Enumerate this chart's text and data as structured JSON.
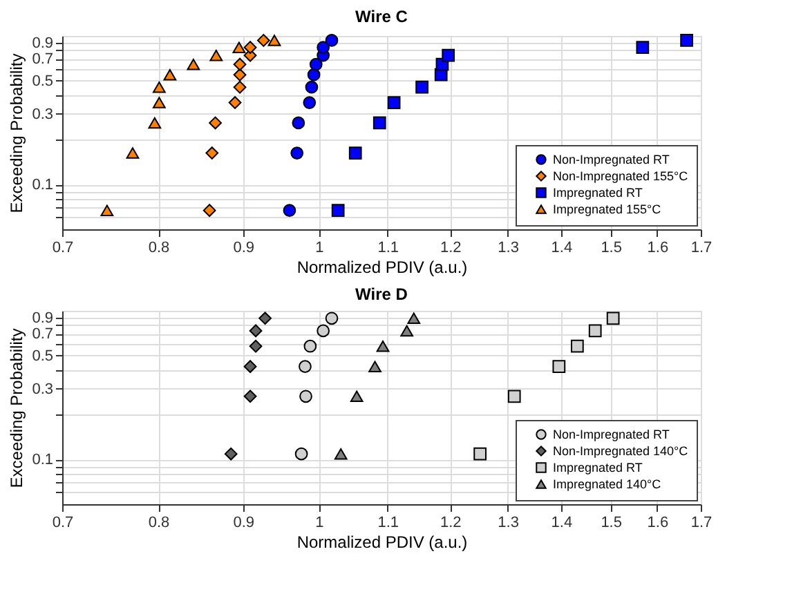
{
  "chart_data": [
    {
      "type": "scatter",
      "title": "Wire C",
      "xlabel": "Normalized PDIV (a.u.)",
      "ylabel": "Exceeding Probability",
      "log": "xy",
      "grid": true,
      "legend": "bottom right",
      "xlim": [
        0.7,
        1.7
      ],
      "xticks": [
        0.7,
        0.8,
        0.9,
        1,
        1.1,
        1.2,
        1.3,
        1.4,
        1.5,
        1.6,
        1.7
      ],
      "ylim": [
        0.05,
        1
      ],
      "yticks": [
        {
          "value": 0.06,
          "label": null
        },
        {
          "value": 0.07,
          "label": null
        },
        {
          "value": 0.08,
          "label": null
        },
        {
          "value": 0.09,
          "label": null
        },
        0.1,
        {
          "value": 0.2,
          "label": null
        },
        0.3,
        {
          "value": 0.4,
          "label": null
        },
        0.5,
        {
          "value": 0.6,
          "label": null
        },
        0.7,
        {
          "value": 0.8,
          "label": null
        },
        0.9
      ],
      "series": [
        {
          "name": "Non-Impregnated RT",
          "color": "#0000ff",
          "marker": "circle",
          "x": [
            0.96,
            0.97,
            0.972,
            0.987,
            0.99,
            0.993,
            0.996,
            1.006,
            1.006,
            1.018
          ],
          "values": [
            0.067,
            0.163,
            0.26,
            0.356,
            0.452,
            0.548,
            0.644,
            0.74,
            0.837,
            0.933
          ]
        },
        {
          "name": "Non-Impregnated 155°C",
          "color": "#ff8000",
          "marker": "diamond",
          "x": [
            0.859,
            0.862,
            0.866,
            0.89,
            0.896,
            0.896,
            0.896,
            0.909,
            0.909,
            0.926
          ],
          "values": [
            0.067,
            0.163,
            0.26,
            0.356,
            0.452,
            0.548,
            0.644,
            0.74,
            0.837,
            0.933
          ]
        },
        {
          "name": "Impregnated RT",
          "color": "#0000ff",
          "marker": "square",
          "x": [
            1.027,
            1.052,
            1.088,
            1.11,
            1.154,
            1.185,
            1.187,
            1.197,
            1.568,
            1.667
          ],
          "values": [
            0.067,
            0.163,
            0.26,
            0.356,
            0.452,
            0.548,
            0.644,
            0.74,
            0.837,
            0.933
          ]
        },
        {
          "name": "Impregnated 155°C",
          "color": "#ff8000",
          "marker": "triangle",
          "x": [
            0.745,
            0.772,
            0.796,
            0.801,
            0.801,
            0.813,
            0.84,
            0.867,
            0.895,
            0.94
          ],
          "values": [
            0.067,
            0.163,
            0.26,
            0.356,
            0.452,
            0.548,
            0.644,
            0.74,
            0.837,
            0.933
          ]
        }
      ]
    },
    {
      "type": "scatter",
      "title": "Wire D",
      "xlabel": "Normalized PDIV (a.u.)",
      "ylabel": "Exceeding Probability",
      "log": "xy",
      "grid": true,
      "legend": "bottom right",
      "xlim": [
        0.7,
        1.7
      ],
      "xticks": [
        0.7,
        0.8,
        0.9,
        1,
        1.1,
        1.2,
        1.3,
        1.4,
        1.5,
        1.6,
        1.7
      ],
      "ylim": [
        0.05,
        1
      ],
      "yticks": [
        {
          "value": 0.06,
          "label": null
        },
        {
          "value": 0.07,
          "label": null
        },
        {
          "value": 0.08,
          "label": null
        },
        {
          "value": 0.09,
          "label": null
        },
        0.1,
        {
          "value": 0.2,
          "label": null
        },
        0.3,
        {
          "value": 0.4,
          "label": null
        },
        0.5,
        {
          "value": 0.6,
          "label": null
        },
        0.7,
        {
          "value": 0.8,
          "label": null
        },
        0.9
      ],
      "series": [
        {
          "name": "Non-Impregnated RT",
          "color": "#d0d0d0",
          "marker": "circle",
          "x": [
            0.976,
            0.982,
            0.981,
            0.988,
            1.006,
            1.018
          ],
          "values": [
            0.109,
            0.266,
            0.422,
            0.578,
            0.734,
            0.891
          ]
        },
        {
          "name": "Non-Impregnated 140°C",
          "color": "#606060",
          "marker": "diamond",
          "x": [
            0.885,
            0.909,
            0.909,
            0.916,
            0.916,
            0.928
          ],
          "values": [
            0.109,
            0.266,
            0.422,
            0.578,
            0.734,
            0.891
          ]
        },
        {
          "name": "Impregnated RT",
          "color": "#d0d0d0",
          "marker": "square",
          "x": [
            1.251,
            1.312,
            1.396,
            1.432,
            1.468,
            1.505
          ],
          "values": [
            0.109,
            0.266,
            0.422,
            0.578,
            0.734,
            0.891
          ]
        },
        {
          "name": "Impregnated 140°C",
          "color": "#808080",
          "marker": "triangle",
          "x": [
            1.031,
            1.054,
            1.081,
            1.093,
            1.13,
            1.141
          ],
          "values": [
            0.109,
            0.266,
            0.422,
            0.578,
            0.734,
            0.891
          ]
        }
      ]
    }
  ]
}
